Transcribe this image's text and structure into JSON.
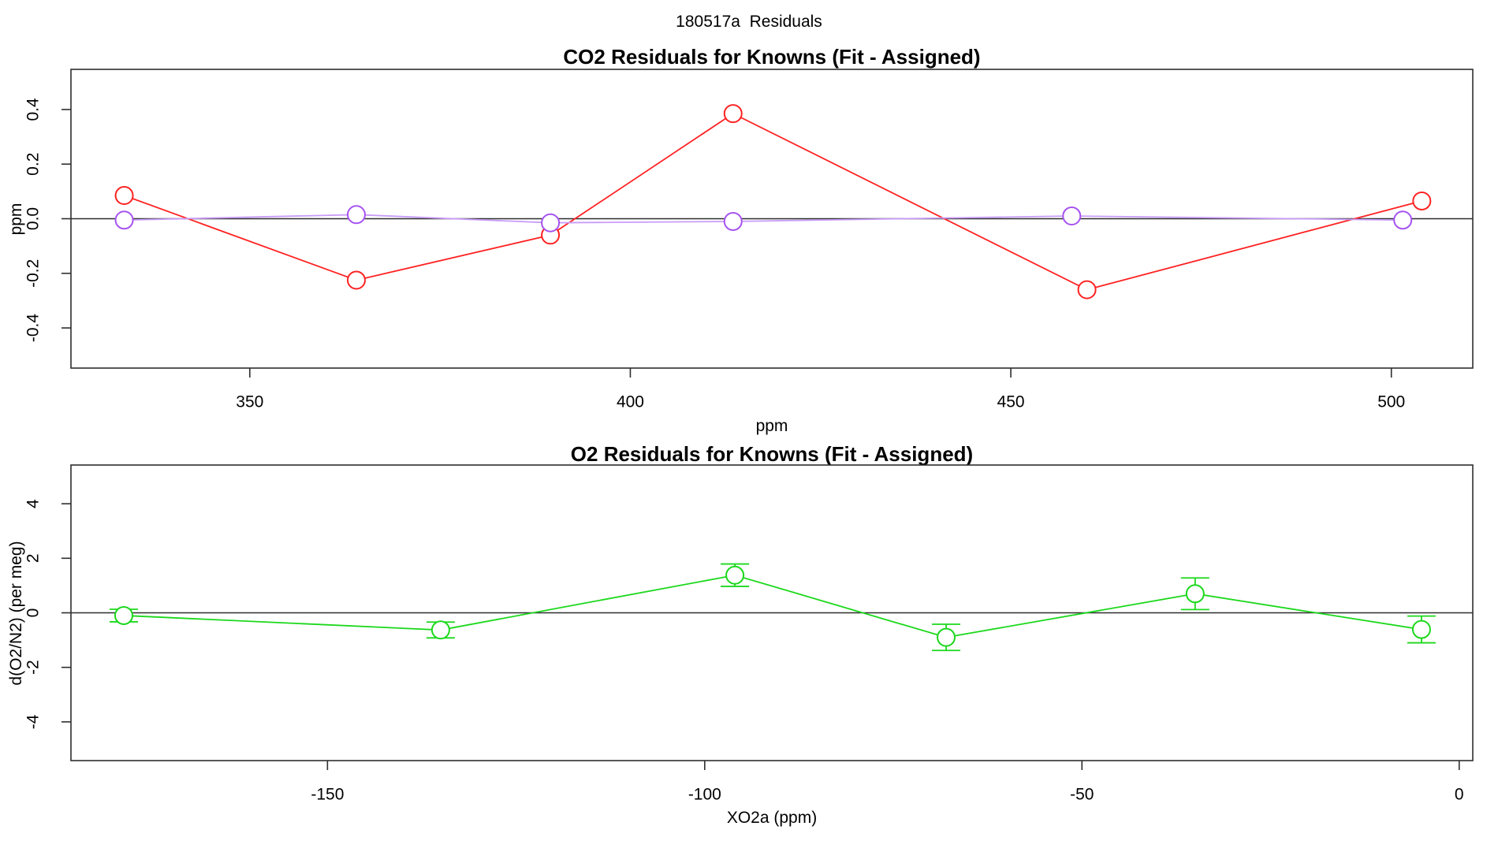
{
  "page_title": "180517a  Residuals",
  "colors": {
    "axis": "#2e2e2e",
    "red_series": "#ff2222",
    "purple_marker": "#a653f0",
    "purple_line": "#c99df8",
    "green_series": "#1bd81b",
    "marker_fill": "#ffffff",
    "text": "#000000"
  },
  "chart_data": [
    {
      "type": "line",
      "title": "CO2 Residuals for Knowns (Fit - Assigned)",
      "xlabel": "ppm",
      "ylabel": "ppm",
      "xlim": [
        326.5,
        510.7
      ],
      "ylim": [
        -0.547,
        0.547
      ],
      "xticks": [
        350,
        400,
        450,
        500
      ],
      "xtick_labels": [
        "350",
        "400",
        "450",
        "500"
      ],
      "yticks": [
        -0.4,
        -0.2,
        0.0,
        0.2,
        0.4
      ],
      "ytick_labels": [
        "-0.4",
        "-0.2",
        "0.0",
        "0.2",
        "0.4"
      ],
      "zero_line": true,
      "grid": false,
      "legend": null,
      "series": [
        {
          "name": "co2-residual-series-red",
          "marker": "open-circle",
          "color": "#ff2222",
          "x": [
            333.5,
            364.0,
            389.5,
            413.5,
            460.0,
            504.0
          ],
          "y": [
            0.085,
            -0.225,
            -0.06,
            0.385,
            -0.26,
            0.065
          ]
        },
        {
          "name": "co2-residual-series-purple",
          "marker": "open-circle",
          "color": "#a653f0",
          "line_color": "#c99df8",
          "x": [
            333.5,
            364.0,
            389.5,
            413.5,
            458.0,
            501.5
          ],
          "y": [
            -0.005,
            0.015,
            -0.015,
            -0.01,
            0.01,
            -0.005
          ]
        }
      ]
    },
    {
      "type": "line",
      "title": "O2 Residuals for Knowns (Fit - Assigned)",
      "xlabel": "XO2a (ppm)",
      "ylabel": "d(O2/N2) (per meg)",
      "xlim": [
        -184.0,
        1.8
      ],
      "ylim": [
        -5.42,
        5.42
      ],
      "xticks": [
        -150,
        -100,
        -50,
        0
      ],
      "xtick_labels": [
        "-150",
        "-100",
        "-50",
        "0"
      ],
      "yticks": [
        -4,
        -2,
        0,
        2,
        4
      ],
      "ytick_labels": [
        "-4",
        "-2",
        "0",
        "2",
        "4"
      ],
      "zero_line": true,
      "grid": false,
      "legend": null,
      "series": [
        {
          "name": "o2-residual-series-green",
          "marker": "open-circle",
          "color": "#1bd81b",
          "x": [
            -177.0,
            -135.0,
            -96.0,
            -68.0,
            -35.0,
            -5.0
          ],
          "y": [
            -0.1,
            -0.63,
            1.38,
            -0.9,
            0.7,
            -0.61
          ],
          "yerr": [
            0.23,
            0.29,
            0.41,
            0.48,
            0.58,
            0.49
          ]
        }
      ]
    }
  ]
}
